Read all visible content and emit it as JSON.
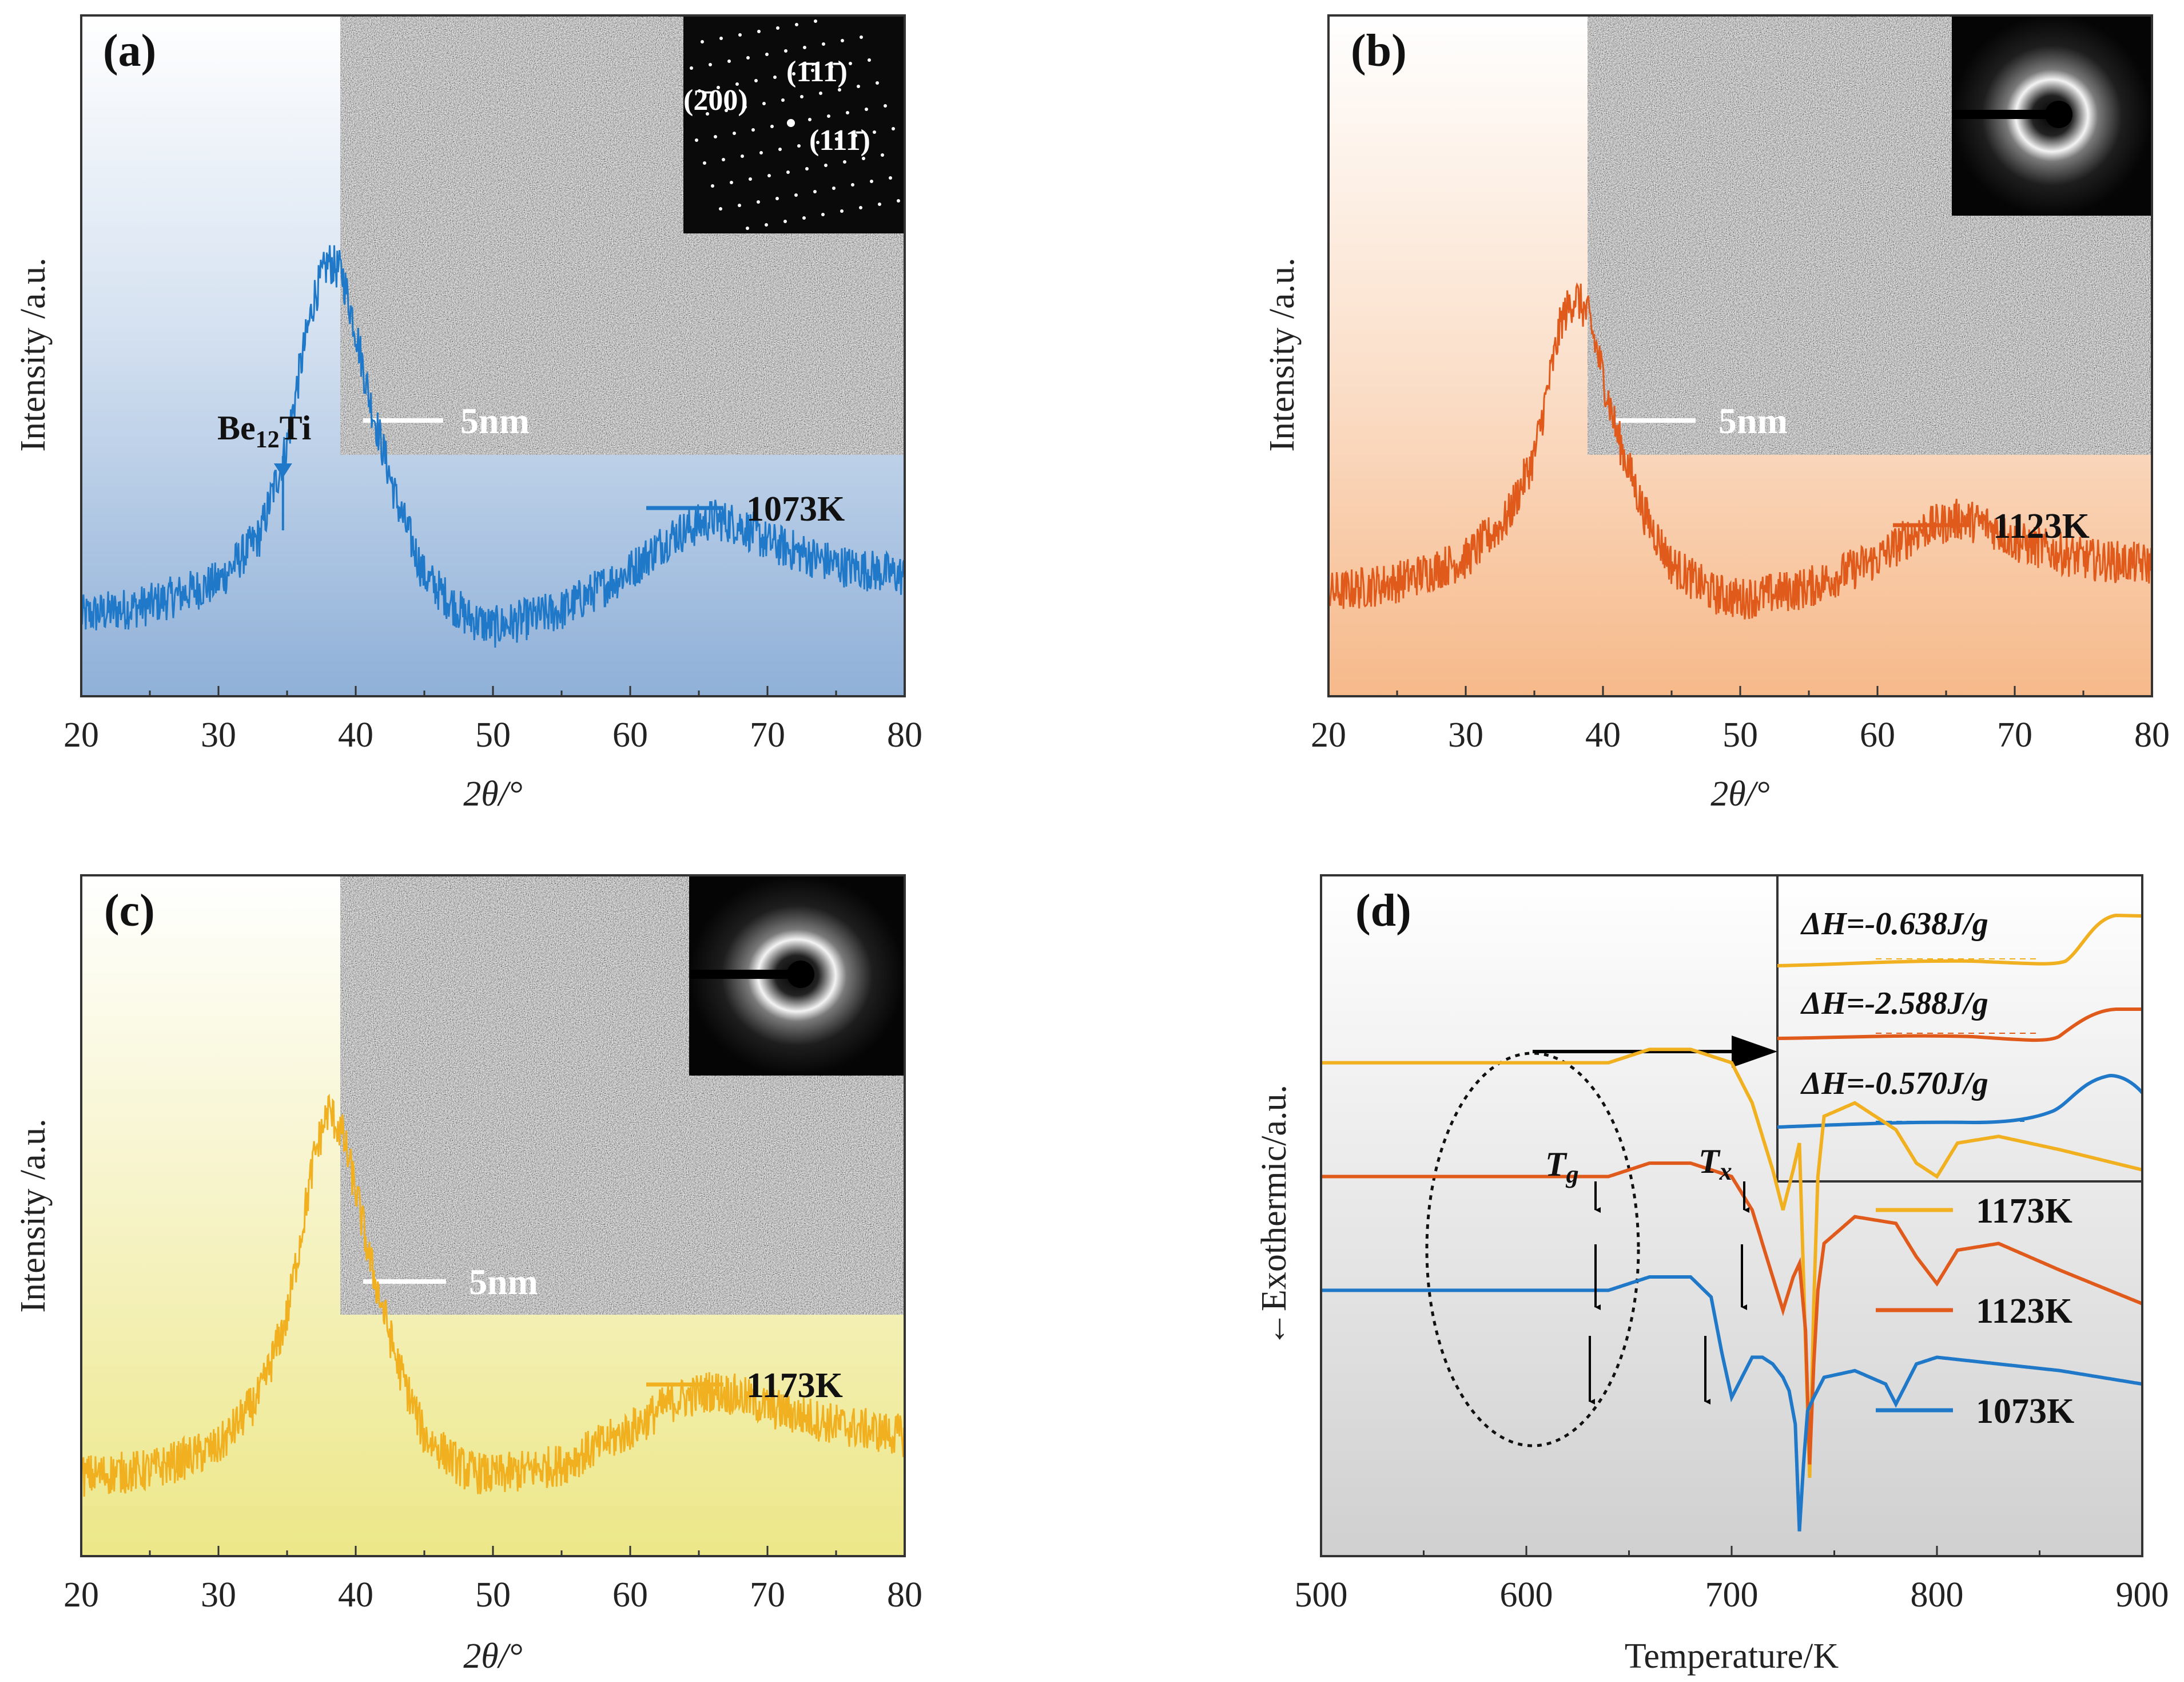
{
  "colors": {
    "blue": "#1f78c8",
    "orange": "#e05a1c",
    "yellow": "#f0b020",
    "bg_a": "#8fb0d8",
    "bg_b": "#f6b98a",
    "bg_c": "#ece788",
    "bg_d": "#d2d2d2"
  },
  "chart_data": [
    {
      "panel": "(a)",
      "type": "line",
      "xlabel": "2θ/°",
      "ylabel": "Intensity /a.u.",
      "xlim": [
        20,
        80
      ],
      "xticks": [
        "20",
        "30",
        "40",
        "50",
        "60",
        "70",
        "80"
      ],
      "series": [
        {
          "name": "1073K",
          "color": "#1f78c8",
          "x": [
            20,
            25,
            30,
            33,
            35,
            36,
            37,
            38,
            39,
            40,
            41,
            43,
            45,
            48,
            50,
            55,
            60,
            63,
            66,
            68,
            70,
            75,
            80
          ],
          "y": [
            0.1,
            0.12,
            0.16,
            0.24,
            0.4,
            0.54,
            0.66,
            0.72,
            0.7,
            0.6,
            0.48,
            0.3,
            0.17,
            0.1,
            0.08,
            0.11,
            0.18,
            0.24,
            0.27,
            0.26,
            0.23,
            0.19,
            0.17
          ]
        }
      ],
      "peak_label": "Be12Ti",
      "peak_label_main": "Be",
      "peak_label_sub": "12",
      "peak_label_end": "Ti",
      "peak_x": 34.7,
      "inset": {
        "scale_bar": "5nm",
        "saed": "spots",
        "saed_labels": [
          "(2̄00)",
          "(1̄11̄)",
          "(111̄)"
        ]
      }
    },
    {
      "panel": "(b)",
      "type": "line",
      "xlabel": "2θ/°",
      "ylabel": "Intensity /a.u.",
      "xlim": [
        20,
        80
      ],
      "xticks": [
        "20",
        "30",
        "40",
        "50",
        "60",
        "70",
        "80"
      ],
      "series": [
        {
          "name": "1123K",
          "color": "#e05a1c",
          "x": [
            20,
            25,
            30,
            33,
            35,
            36,
            37,
            38,
            39,
            40,
            41,
            43,
            45,
            48,
            50,
            55,
            60,
            63,
            66,
            68,
            70,
            75,
            80
          ],
          "y": [
            0.14,
            0.16,
            0.2,
            0.27,
            0.38,
            0.5,
            0.62,
            0.66,
            0.62,
            0.52,
            0.42,
            0.28,
            0.19,
            0.14,
            0.13,
            0.15,
            0.2,
            0.25,
            0.27,
            0.26,
            0.23,
            0.2,
            0.19
          ]
        }
      ],
      "inset": {
        "scale_bar": "5nm",
        "saed": "halo"
      }
    },
    {
      "panel": "(c)",
      "type": "line",
      "xlabel": "2θ/°",
      "ylabel": "Intensity /a.u.",
      "xlim": [
        20,
        80
      ],
      "xticks": [
        "20",
        "30",
        "40",
        "50",
        "60",
        "70",
        "80"
      ],
      "series": [
        {
          "name": "1173K",
          "color": "#f0b020",
          "x": [
            20,
            25,
            30,
            33,
            35,
            36,
            37,
            38,
            39,
            40,
            41,
            43,
            45,
            48,
            50,
            55,
            60,
            63,
            66,
            68,
            70,
            75,
            80
          ],
          "y": [
            0.1,
            0.11,
            0.15,
            0.24,
            0.38,
            0.52,
            0.66,
            0.74,
            0.7,
            0.6,
            0.48,
            0.3,
            0.17,
            0.11,
            0.1,
            0.12,
            0.18,
            0.23,
            0.25,
            0.24,
            0.22,
            0.19,
            0.17
          ]
        }
      ],
      "inset": {
        "scale_bar": "5nm",
        "saed": "halo"
      }
    },
    {
      "panel": "(d)",
      "type": "line",
      "xlabel": "Temperature/K",
      "ylabel": "←Exothermic/a.u.",
      "xlim": [
        500,
        900
      ],
      "xticks": [
        "500",
        "600",
        "700",
        "800",
        "900"
      ],
      "marker_labels": {
        "tg_main": "T",
        "tg_sub": "g",
        "tx_main": "T",
        "tx_sub": "x"
      },
      "series": [
        {
          "name": "1173K",
          "color": "#f0b020",
          "x": [
            500,
            600,
            640,
            660,
            680,
            700,
            710,
            720,
            725,
            730,
            733,
            736,
            738,
            740,
            742,
            745,
            760,
            780,
            790,
            800,
            810,
            830,
            860,
            900
          ],
          "y": [
            0.72,
            0.72,
            0.72,
            0.74,
            0.74,
            0.72,
            0.66,
            0.56,
            0.5,
            0.56,
            0.6,
            0.3,
            0.1,
            0.36,
            0.55,
            0.64,
            0.66,
            0.62,
            0.57,
            0.55,
            0.6,
            0.61,
            0.59,
            0.56
          ]
        },
        {
          "name": "1123K",
          "color": "#e05a1c",
          "x": [
            500,
            600,
            640,
            660,
            680,
            700,
            710,
            720,
            725,
            730,
            733,
            736,
            738,
            740,
            742,
            745,
            760,
            780,
            790,
            800,
            810,
            830,
            860,
            900
          ],
          "y": [
            0.55,
            0.55,
            0.55,
            0.57,
            0.57,
            0.55,
            0.5,
            0.4,
            0.35,
            0.4,
            0.42,
            0.32,
            0.12,
            0.27,
            0.38,
            0.45,
            0.49,
            0.48,
            0.43,
            0.39,
            0.44,
            0.45,
            0.41,
            0.36
          ]
        },
        {
          "name": "1073K",
          "color": "#1f78c8",
          "x": [
            500,
            600,
            640,
            660,
            680,
            690,
            695,
            700,
            705,
            710,
            715,
            720,
            725,
            728,
            731,
            733,
            735,
            737,
            740,
            745,
            760,
            775,
            780,
            790,
            800,
            830,
            860,
            900
          ],
          "y": [
            0.38,
            0.38,
            0.38,
            0.4,
            0.4,
            0.37,
            0.29,
            0.22,
            0.25,
            0.28,
            0.28,
            0.27,
            0.25,
            0.23,
            0.18,
            0.02,
            0.12,
            0.2,
            0.22,
            0.25,
            0.26,
            0.24,
            0.21,
            0.27,
            0.28,
            0.27,
            0.26,
            0.24
          ]
        }
      ],
      "inset": {
        "labels": [
          "ΔH=-0.638J/g",
          "ΔH=-2.588J/g",
          "ΔH=-0.570J/g"
        ]
      }
    }
  ]
}
